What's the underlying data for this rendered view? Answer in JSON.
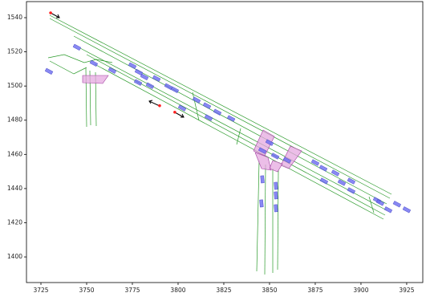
{
  "chart_data": {
    "type": "scatter",
    "xlim": [
      3717.1,
      3933.8
    ],
    "ylim": [
      1385.0,
      1549.4
    ],
    "xticks": [
      3725,
      3750,
      3775,
      3800,
      3825,
      3850,
      3875,
      3900,
      3925
    ],
    "yticks": [
      1400,
      1420,
      1440,
      1460,
      1480,
      1500,
      1520,
      1540
    ],
    "series": [
      {
        "color": "#6a6af0",
        "x": [
          3729.4,
          3744.7,
          3753.9,
          3764.0,
          3775.0,
          3778.5,
          3781.6,
          3778.1,
          3784.6,
          3788.2,
          3794.7,
          3798.2,
          3802.2,
          3810.1,
          3815.8,
          3816.7,
          3821.5,
          3829.0,
          3846.1,
          3850.0,
          3853.1,
          3859.6,
          3875.0,
          3879.4,
          3879.8,
          3886.0,
          3889.5,
          3894.7,
          3894.7,
          3908.8,
          3910.5,
          3914.9,
          3919.7,
          3925.0,
          3846.1,
          3853.5,
          3853.5,
          3845.6,
          3853.5
        ],
        "values": [
          1508.6,
          1522.7,
          1513.3,
          1509.1,
          1511.9,
          1508.1,
          1505.3,
          1502.1,
          1500.2,
          1504.4,
          1499.7,
          1497.8,
          1487.1,
          1491.8,
          1488.5,
          1481.5,
          1484.7,
          1481.0,
          1462.2,
          1466.9,
          1459.0,
          1456.6,
          1455.2,
          1451.9,
          1444.4,
          1449.1,
          1443.5,
          1438.8,
          1444.4,
          1433.2,
          1431.8,
          1427.6,
          1430.9,
          1427.6,
          1445.4,
          1441.6,
          1436.0,
          1431.3,
          1428.5
        ]
      },
      {
        "color": "#ff2020",
        "x": [
          3730.3,
          3789.9,
          3798.2
        ],
        "values": [
          1542.8,
          1488.5,
          1484.7
        ]
      }
    ]
  }
}
